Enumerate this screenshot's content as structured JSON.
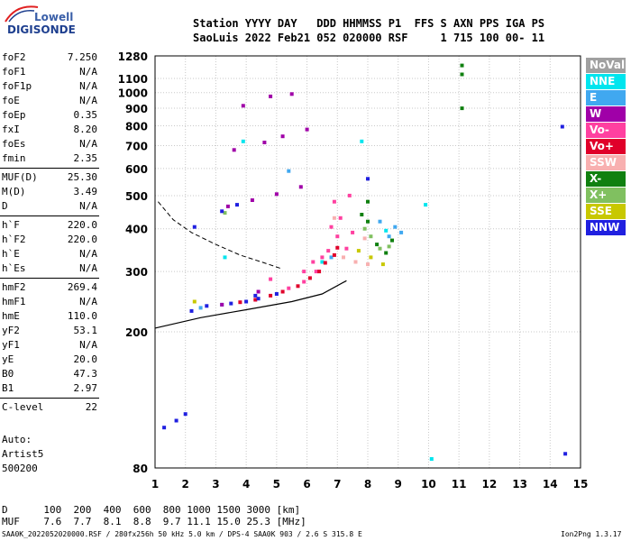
{
  "logo": {
    "line1": "Lowell",
    "line2": "DIGISONDE"
  },
  "header": {
    "line1": "Station YYYY DAY   DDD HHMMSS P1  FFS S AXN PPS IGA PS",
    "line2": "SaoLuis 2022 Feb21 052 020000 RSF     1 715 100 00- 11"
  },
  "params": [
    {
      "k": "foF2",
      "v": "7.250"
    },
    {
      "k": "foF1",
      "v": "N/A"
    },
    {
      "k": "foF1p",
      "v": "N/A"
    },
    {
      "k": "foE",
      "v": "N/A"
    },
    {
      "k": "foEp",
      "v": "0.35"
    },
    {
      "k": "fxI",
      "v": "8.20"
    },
    {
      "k": "foEs",
      "v": "N/A"
    },
    {
      "k": "fmin",
      "v": "2.35"
    },
    {
      "k": "MUF(D)",
      "v": "25.30"
    },
    {
      "k": "M(D)",
      "v": "3.49"
    },
    {
      "k": "D",
      "v": "N/A"
    },
    {
      "k": "h`F",
      "v": "220.0"
    },
    {
      "k": "h`F2",
      "v": "220.0"
    },
    {
      "k": "h`E",
      "v": "N/A"
    },
    {
      "k": "h`Es",
      "v": "N/A"
    },
    {
      "k": "hmF2",
      "v": "269.4"
    },
    {
      "k": "hmF1",
      "v": "N/A"
    },
    {
      "k": "hmE",
      "v": "110.0"
    },
    {
      "k": "yF2",
      "v": "53.1"
    },
    {
      "k": "yF1",
      "v": "N/A"
    },
    {
      "k": "yE",
      "v": "20.0"
    },
    {
      "k": "B0",
      "v": "47.3"
    },
    {
      "k": "B1",
      "v": "2.97"
    },
    {
      "k": "C-level",
      "v": "22"
    }
  ],
  "auto": {
    "line1": "Auto:",
    "line2": "Artist5",
    "line3": "500200"
  },
  "legend": [
    {
      "label": "NoVal",
      "color": "#a0a0a0"
    },
    {
      "label": "NNE",
      "color": "#00e5ee"
    },
    {
      "label": "E",
      "color": "#40a8f0"
    },
    {
      "label": "W",
      "color": "#a000a8"
    },
    {
      "label": "Vo-",
      "color": "#ff40a0"
    },
    {
      "label": "Vo+",
      "color": "#e0002a"
    },
    {
      "label": "SSW",
      "color": "#f8b0b0"
    },
    {
      "label": "X-",
      "color": "#108010"
    },
    {
      "label": "X+",
      "color": "#80c060"
    },
    {
      "label": "SSE",
      "color": "#c8c800"
    },
    {
      "label": "NNW",
      "color": "#2020e0"
    }
  ],
  "footer": {
    "d_line": "D      100  200  400  600  800 1000 1500 3000 [km]",
    "muf_line": "MUF    7.6  7.7  8.1  8.8  9.7 11.1 15.0 25.3 [MHz]",
    "file_line": "SAA0K_2022052020000.RSF / 280fx256h 50 kHz 5.0 km / DPS-4 SAA0K 903 / 2.6 S 315.8 E",
    "version": "Ion2Png 1.3.17"
  },
  "chart_data": {
    "type": "scatter",
    "title": "",
    "xlabel": "",
    "ylabel": "",
    "xlim": [
      1,
      15
    ],
    "ylim": [
      80,
      1280
    ],
    "x_ticks": [
      1,
      2,
      3,
      4,
      5,
      6,
      7,
      8,
      9,
      10,
      11,
      12,
      13,
      14,
      15
    ],
    "y_ticks": [
      80,
      200,
      300,
      400,
      500,
      600,
      700,
      800,
      900,
      1000,
      1100,
      1280
    ],
    "y_tick_labels": [
      "80",
      "200",
      "300",
      "400",
      "500",
      "600",
      "700",
      "800",
      "900",
      "1000",
      "1100",
      "1280"
    ],
    "y_scale": "log",
    "grid": true,
    "series": [
      {
        "name": "NNE",
        "color": "#00e5ee",
        "points": [
          [
            7.8,
            720
          ],
          [
            10.1,
            85
          ],
          [
            9.9,
            470
          ],
          [
            3.3,
            330
          ],
          [
            6.5,
            320
          ],
          [
            8.6,
            395
          ],
          [
            3.9,
            720
          ]
        ]
      },
      {
        "name": "E",
        "color": "#40a8f0",
        "points": [
          [
            2.5,
            235
          ],
          [
            3.2,
            240
          ],
          [
            8.4,
            420
          ],
          [
            8.7,
            380
          ],
          [
            8.9,
            405
          ],
          [
            9.1,
            390
          ],
          [
            5.4,
            590
          ],
          [
            6.8,
            330
          ]
        ]
      },
      {
        "name": "W",
        "color": "#a000a8",
        "points": [
          [
            3.4,
            465
          ],
          [
            4.2,
            485
          ],
          [
            5.0,
            505
          ],
          [
            5.8,
            530
          ],
          [
            3.6,
            680
          ],
          [
            4.6,
            715
          ],
          [
            5.2,
            745
          ],
          [
            6.0,
            780
          ],
          [
            3.9,
            915
          ],
          [
            4.8,
            975
          ],
          [
            5.5,
            990
          ],
          [
            3.2,
            240
          ],
          [
            4.4,
            262
          ]
        ]
      },
      {
        "name": "Vo-",
        "color": "#ff40a0",
        "points": [
          [
            5.4,
            268
          ],
          [
            5.9,
            280
          ],
          [
            6.3,
            300
          ],
          [
            6.7,
            345
          ],
          [
            7.0,
            380
          ],
          [
            7.1,
            430
          ],
          [
            6.8,
            405
          ],
          [
            6.5,
            330
          ],
          [
            6.2,
            320
          ],
          [
            6.9,
            480
          ],
          [
            7.3,
            350
          ],
          [
            7.5,
            390
          ],
          [
            5.9,
            300
          ],
          [
            7.4,
            500
          ],
          [
            4.8,
            285
          ]
        ]
      },
      {
        "name": "Vo+",
        "color": "#e0002a",
        "points": [
          [
            4.3,
            248
          ],
          [
            4.8,
            255
          ],
          [
            5.2,
            262
          ],
          [
            5.7,
            272
          ],
          [
            6.1,
            287
          ],
          [
            6.4,
            300
          ],
          [
            6.6,
            318
          ],
          [
            6.9,
            335
          ],
          [
            3.8,
            244
          ],
          [
            7.0,
            352
          ]
        ]
      },
      {
        "name": "SSW",
        "color": "#f8b0b0",
        "points": [
          [
            7.2,
            330
          ],
          [
            7.6,
            320
          ],
          [
            8.0,
            315
          ],
          [
            6.9,
            430
          ],
          [
            7.9,
            375
          ]
        ]
      },
      {
        "name": "X-",
        "color": "#108010",
        "points": [
          [
            11.1,
            1200
          ],
          [
            11.1,
            1130
          ],
          [
            11.1,
            900
          ],
          [
            8.0,
            420
          ],
          [
            8.3,
            360
          ],
          [
            8.6,
            340
          ],
          [
            8.8,
            370
          ],
          [
            7.8,
            440
          ],
          [
            8.0,
            480
          ]
        ]
      },
      {
        "name": "X+",
        "color": "#80c060",
        "points": [
          [
            8.1,
            380
          ],
          [
            8.4,
            350
          ],
          [
            7.9,
            400
          ],
          [
            8.7,
            355
          ],
          [
            3.3,
            445
          ]
        ]
      },
      {
        "name": "SSE",
        "color": "#c8c800",
        "points": [
          [
            7.7,
            345
          ],
          [
            8.1,
            330
          ],
          [
            2.3,
            245
          ],
          [
            8.5,
            315
          ]
        ]
      },
      {
        "name": "NNW",
        "color": "#2020e0",
        "points": [
          [
            1.3,
            105
          ],
          [
            1.7,
            110
          ],
          [
            2.0,
            115
          ],
          [
            2.2,
            230
          ],
          [
            2.7,
            238
          ],
          [
            3.5,
            242
          ],
          [
            4.0,
            245
          ],
          [
            4.4,
            250
          ],
          [
            3.2,
            450
          ],
          [
            3.7,
            470
          ],
          [
            2.3,
            405
          ],
          [
            8.0,
            560
          ],
          [
            14.4,
            795
          ],
          [
            14.5,
            88
          ],
          [
            4.3,
            255
          ],
          [
            5.0,
            258
          ]
        ]
      }
    ]
  }
}
